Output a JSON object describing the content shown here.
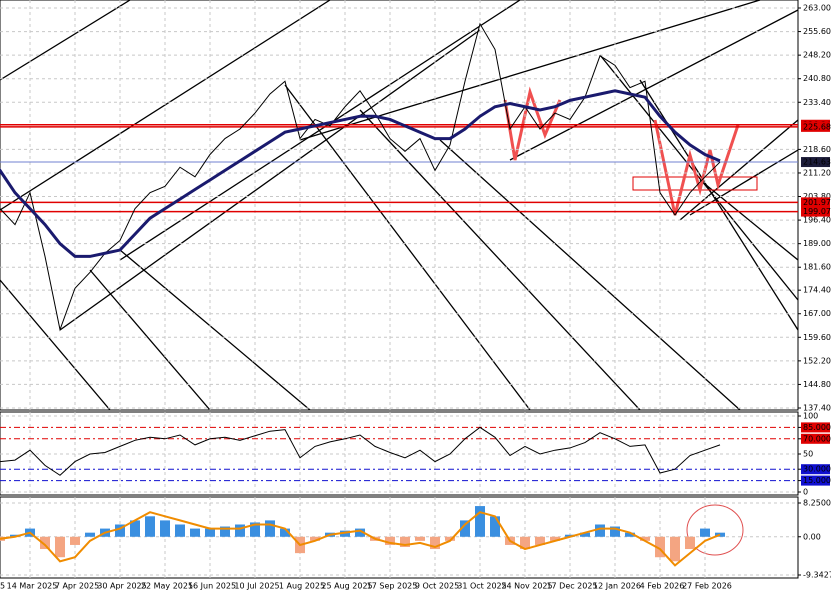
{
  "chart_data": [
    {
      "type": "line",
      "categories": [
        "5",
        null,
        null,
        "14 Mar 2025",
        null,
        null,
        "7 Apr 2025",
        null,
        null,
        "30 Apr 2025",
        null,
        null,
        "22 May 2025",
        null,
        null,
        "16 Jun 2025",
        null,
        null,
        "10 Jul 2025",
        null,
        null,
        "1 Aug 2025",
        null,
        null,
        "25 Aug 2025",
        null,
        null,
        "17 Sep 2025",
        null,
        null,
        "9 Oct 2025",
        null,
        null,
        "31 Oct 2025",
        null,
        null,
        "24 Nov 2025",
        null,
        null,
        "17 Dec 2025",
        null,
        null,
        "12 Jan 2026",
        null,
        null,
        "4 Feb 2026",
        null,
        null,
        "27 Feb 2026",
        null
      ],
      "series": [
        {
          "color": "#000000",
          "values": [
            205,
            200,
            195,
            205,
            185,
            162,
            175,
            180,
            186,
            190,
            200,
            205,
            207,
            213,
            210,
            217,
            222,
            225,
            230,
            236,
            240,
            222,
            228,
            226,
            232,
            237,
            230,
            222,
            218,
            222,
            212,
            220,
            240,
            258,
            250,
            225,
            232,
            225,
            230,
            228,
            235,
            248,
            245,
            238,
            240,
            205,
            198,
            205,
            210,
            214.63
          ]
        },
        {
          "color": "#1a1a6e",
          "width": 3,
          "values": [
            218,
            212,
            205,
            200,
            195,
            189,
            185,
            185,
            186,
            187,
            192,
            197,
            200,
            203,
            206,
            209,
            212,
            215,
            218,
            221,
            224,
            225,
            226,
            227,
            228,
            229,
            229,
            228,
            226,
            224,
            222,
            222,
            225,
            229,
            232,
            233,
            232,
            231,
            232,
            234,
            235,
            236,
            237,
            236,
            235,
            229,
            224,
            220,
            217,
            215
          ]
        }
      ],
      "ylim": [
        137.4,
        263
      ],
      "yticks": [
        {
          "value": 263,
          "label": "263.00"
        },
        {
          "value": 255.6,
          "label": "255.60"
        },
        {
          "value": 248.2,
          "label": "248.20"
        },
        {
          "value": 240.8,
          "label": "240.80"
        },
        {
          "value": 233.4,
          "label": "233.40"
        },
        {
          "value": 218.6,
          "label": "218.60"
        },
        {
          "value": 211.2,
          "label": "211.20"
        },
        {
          "value": 203.8,
          "label": "203.80"
        },
        {
          "value": 196.4,
          "label": "196.40"
        },
        {
          "value": 189,
          "label": "189.00"
        },
        {
          "value": 181.6,
          "label": "181.60"
        },
        {
          "value": 174.4,
          "label": "174.40"
        },
        {
          "value": 167,
          "label": "167.00"
        },
        {
          "value": 159.6,
          "label": "159.60"
        },
        {
          "value": 152.2,
          "label": "152.20"
        },
        {
          "value": 144.8,
          "label": "144.80"
        },
        {
          "value": 137.4,
          "label": "137.40"
        }
      ],
      "levels": [
        {
          "value": 226.34,
          "color": "#e00000"
        },
        {
          "value": 225.68,
          "color": "#e00000"
        },
        {
          "value": 214.63,
          "color": "#1c1c3a"
        },
        {
          "value": 201.97,
          "color": "#e00000"
        },
        {
          "value": 199.07,
          "color": "#e00000"
        }
      ],
      "grid": true
    },
    {
      "type": "line",
      "series": [
        {
          "color": "#000000",
          "values": [
            45,
            40,
            42,
            55,
            35,
            22,
            40,
            50,
            52,
            60,
            68,
            72,
            70,
            75,
            62,
            70,
            72,
            68,
            74,
            80,
            82,
            45,
            60,
            66,
            70,
            75,
            60,
            52,
            45,
            55,
            40,
            50,
            70,
            85,
            72,
            48,
            60,
            50,
            55,
            58,
            65,
            78,
            70,
            60,
            62,
            25,
            30,
            48,
            55,
            62
          ]
        }
      ],
      "ylim": [
        0,
        100
      ],
      "yticks": [
        100,
        {
          "value": 85,
          "label": "85.0000",
          "color": "#e00000"
        },
        {
          "value": 70,
          "label": "70.0000",
          "color": "#e00000"
        },
        50,
        {
          "value": 30,
          "label": "30.0000",
          "color": "#1010d0"
        },
        {
          "value": 15,
          "label": "15.0000",
          "color": "#1010d0"
        },
        0
      ],
      "grid": true
    },
    {
      "type": "bar",
      "values": [
        1,
        -1,
        0.5,
        2,
        -3,
        -5,
        -2,
        1,
        2,
        3,
        4,
        5,
        4,
        3,
        2,
        2,
        2.5,
        3,
        3.5,
        4,
        2,
        -4,
        -1,
        1,
        1.5,
        2,
        -1,
        -2,
        -2.5,
        -1,
        -3,
        -1,
        4,
        7.5,
        5,
        -2,
        -3,
        -2,
        -1,
        0.5,
        1,
        3,
        2.5,
        1,
        -1,
        -5,
        -6,
        -3,
        2,
        1
      ],
      "pos_color": "#3a8fe0",
      "neg_color": "#f4a582",
      "line": {
        "color": "#f08c00",
        "values": [
          0.5,
          -0.5,
          0,
          1,
          -2,
          -6,
          -5,
          -1,
          1,
          2,
          4,
          6,
          5,
          4,
          3,
          2,
          2,
          2,
          3,
          3,
          2,
          -2,
          -1,
          0.5,
          1,
          1.5,
          -0.5,
          -1.5,
          -2,
          -1.5,
          -2.5,
          -1,
          3,
          6,
          5,
          -1,
          -3,
          -2,
          -1,
          0,
          1,
          2,
          2,
          1,
          -1,
          -3,
          -7,
          -4,
          -1,
          0.5
        ]
      },
      "ylim": [
        -9.3427,
        8.25
      ],
      "yticks": [
        {
          "value": 8.25,
          "label": "8.2500"
        },
        {
          "value": 0,
          "label": "0.00"
        },
        {
          "value": -9.3427,
          "label": "-9.3427"
        }
      ],
      "grid": true
    }
  ]
}
